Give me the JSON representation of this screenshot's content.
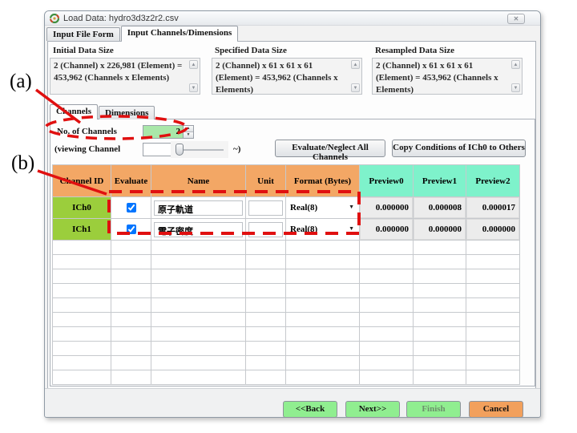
{
  "window": {
    "title": "Load Data: hydro3d3z2r2.csv"
  },
  "icons": {
    "close": "✕",
    "up": "▲",
    "down": "▼",
    "dropdown": "▼",
    "app": "♻"
  },
  "main_tabs": [
    {
      "label": "Input File Form",
      "active": false
    },
    {
      "label": "Input Channels/Dimensions",
      "active": true
    }
  ],
  "data_sizes": [
    {
      "title": "Initial Data Size",
      "text": "2 (Channel) x 226,981 (Element) = 453,962 (Channels x Elements)"
    },
    {
      "title": "Specified Data Size",
      "text": "2 (Channel) x 61 x 61 x 61 (Element) = 453,962 (Channels x Elements)"
    },
    {
      "title": "Resampled Data Size",
      "text": "2 (Channel) x 61 x 61 x 61 (Element) = 453,962 (Channels x Elements)"
    }
  ],
  "sub_tabs": [
    {
      "label": "Channels",
      "active": true
    },
    {
      "label": "Dimensions",
      "active": false
    }
  ],
  "channels_panel": {
    "no_of_channels_label": "No. of Channels",
    "no_of_channels_value": "2",
    "viewing_channel_label": "(viewing Channel",
    "viewing_channel_value": "0",
    "tilde": "~)",
    "evaluate_all_button": "Evaluate/Neglect All Channels",
    "copy_button": "Copy Conditions of ICh0 to Others"
  },
  "table": {
    "headers": [
      "Channel ID",
      "Evaluate",
      "Name",
      "Unit",
      "Format (Bytes)",
      "Preview0",
      "Preview1",
      "Preview2"
    ],
    "rows": [
      {
        "id": "ICh0",
        "evaluate": true,
        "name": "原子軌道",
        "unit": "",
        "format": "Real(8)",
        "previews": [
          "0.000000",
          "0.000008",
          "0.000017"
        ]
      },
      {
        "id": "ICh1",
        "evaluate": true,
        "name": "電子密度",
        "unit": "",
        "format": "Real(8)",
        "previews": [
          "0.000000",
          "0.000000",
          "0.000000"
        ]
      }
    ],
    "empty_rows": 10
  },
  "footer": {
    "back": "<<Back",
    "next": "Next>>",
    "finish": "Finish",
    "cancel": "Cancel"
  },
  "annotations": {
    "a": "(a)",
    "b": "(b)"
  },
  "colors": {
    "header_orange": "#f3a765",
    "preview_aqua": "#7ef2cb",
    "channel_green": "#9bce3c",
    "field_green": "#a9e7a9",
    "button_green": "#90ee90",
    "cancel_orange": "#f2a05c",
    "annotation_red": "#e01010"
  }
}
